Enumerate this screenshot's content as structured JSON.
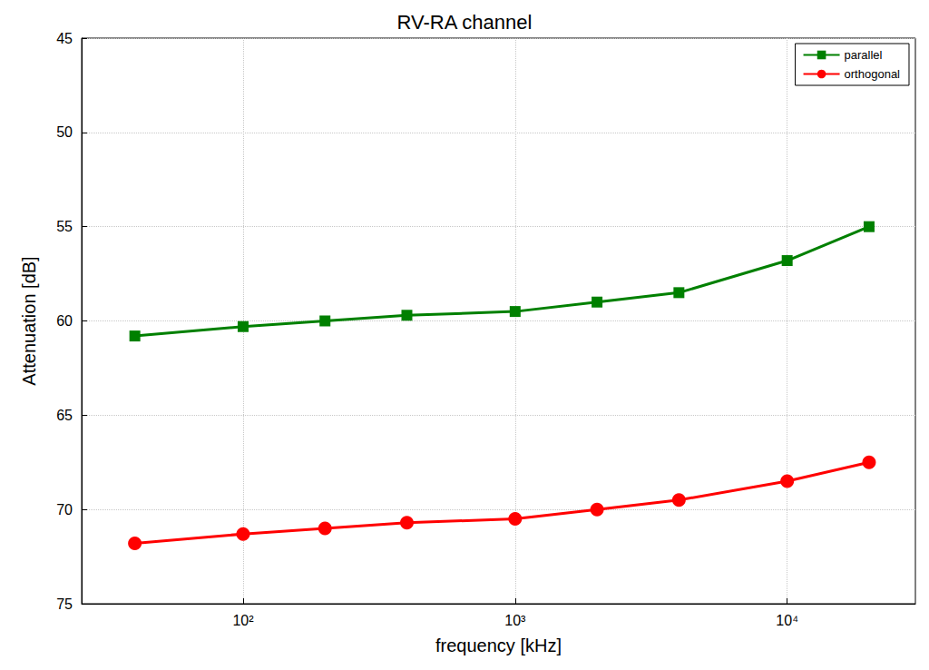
{
  "chart_data": {
    "type": "line",
    "title": "RV-RA channel",
    "xlabel": "frequency [kHz]",
    "ylabel": "Attenuation [dB]",
    "x": [
      40,
      100,
      200,
      400,
      1000,
      2000,
      4000,
      10000,
      20000
    ],
    "series": [
      {
        "name": "parallel",
        "color": "#008000",
        "marker": "square",
        "values": [
          60.8,
          60.3,
          60.0,
          59.7,
          59.5,
          59.0,
          58.5,
          56.8,
          55.0
        ]
      },
      {
        "name": "orthogonal",
        "color": "#ff0000",
        "marker": "circle",
        "values": [
          71.8,
          71.3,
          71.0,
          70.7,
          70.5,
          70.0,
          69.5,
          68.5,
          67.5
        ]
      }
    ],
    "xlim": [
      25.5,
      29600
    ],
    "ylim": [
      75,
      45
    ],
    "xticks": [
      {
        "value": 100,
        "label": "10²"
      },
      {
        "value": 1000,
        "label": "10³"
      },
      {
        "value": 10000,
        "label": "10⁴"
      }
    ],
    "yticks": [
      45,
      50,
      55,
      60,
      65,
      70,
      75
    ],
    "log": "x",
    "grid": true,
    "legend": "upper right"
  }
}
